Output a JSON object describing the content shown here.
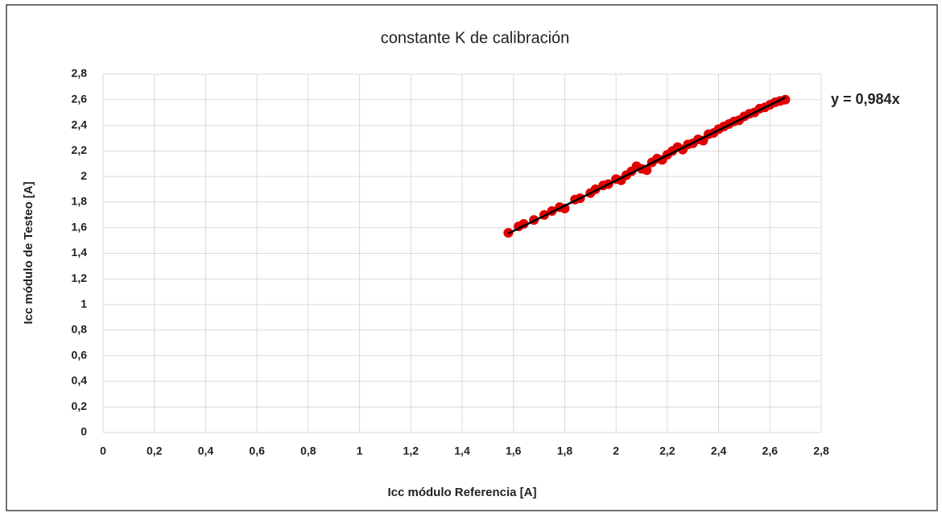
{
  "chart_data": {
    "type": "scatter",
    "title": "constante K de calibración",
    "xlabel": "Icc módulo Referencia [A]",
    "ylabel": "Icc módulo de Testeo [A]",
    "color": "#e00000",
    "x": [
      1.58,
      1.62,
      1.64,
      1.68,
      1.72,
      1.75,
      1.78,
      1.8,
      1.84,
      1.86,
      1.9,
      1.92,
      1.95,
      1.97,
      2.0,
      2.02,
      2.04,
      2.06,
      2.08,
      2.1,
      2.12,
      2.14,
      2.16,
      2.18,
      2.2,
      2.22,
      2.24,
      2.26,
      2.28,
      2.3,
      2.32,
      2.34,
      2.36,
      2.38,
      2.4,
      2.42,
      2.44,
      2.46,
      2.48,
      2.5,
      2.52,
      2.54,
      2.56,
      2.58,
      2.6,
      2.62,
      2.64,
      2.66
    ],
    "values": [
      1.56,
      1.61,
      1.63,
      1.66,
      1.7,
      1.73,
      1.76,
      1.75,
      1.82,
      1.83,
      1.87,
      1.9,
      1.93,
      1.94,
      1.98,
      1.97,
      2.01,
      2.04,
      2.08,
      2.06,
      2.05,
      2.11,
      2.14,
      2.13,
      2.17,
      2.2,
      2.23,
      2.21,
      2.25,
      2.26,
      2.29,
      2.28,
      2.33,
      2.34,
      2.37,
      2.39,
      2.41,
      2.43,
      2.44,
      2.47,
      2.49,
      2.5,
      2.53,
      2.54,
      2.56,
      2.58,
      2.59,
      2.6
    ],
    "xlim": [
      0,
      2.8
    ],
    "ylim": [
      0,
      2.8
    ],
    "xticks": [
      0,
      {
        "value": 0.2,
        "label": "0,2"
      },
      {
        "value": 0.4,
        "label": "0,4"
      },
      {
        "value": 0.6,
        "label": "0,6"
      },
      {
        "value": 0.8,
        "label": "0,8"
      },
      1,
      {
        "value": 1.2,
        "label": "1,2"
      },
      {
        "value": 1.4,
        "label": "1,4"
      },
      {
        "value": 1.6,
        "label": "1,6"
      },
      {
        "value": 1.8,
        "label": "1,8"
      },
      2,
      {
        "value": 2.2,
        "label": "2,2"
      },
      {
        "value": 2.4,
        "label": "2,4"
      },
      {
        "value": 2.6,
        "label": "2,6"
      },
      {
        "value": 2.8,
        "label": "2,8"
      }
    ],
    "yticks": [
      0,
      {
        "value": 0.2,
        "label": "0,2"
      },
      {
        "value": 0.4,
        "label": "0,4"
      },
      {
        "value": 0.6,
        "label": "0,6"
      },
      {
        "value": 0.8,
        "label": "0,8"
      },
      1,
      {
        "value": 1.2,
        "label": "1,2"
      },
      {
        "value": 1.4,
        "label": "1,4"
      },
      {
        "value": 1.6,
        "label": "1,6"
      },
      {
        "value": 1.8,
        "label": "1,8"
      },
      2,
      {
        "value": 2.2,
        "label": "2,2"
      },
      {
        "value": 2.4,
        "label": "2,4"
      },
      {
        "value": 2.6,
        "label": "2,6"
      },
      {
        "value": 2.8,
        "label": "2,8"
      }
    ],
    "grid": true,
    "trendline": {
      "slope": 0.984,
      "label": "y = 0,984x",
      "color": "#000000"
    }
  }
}
